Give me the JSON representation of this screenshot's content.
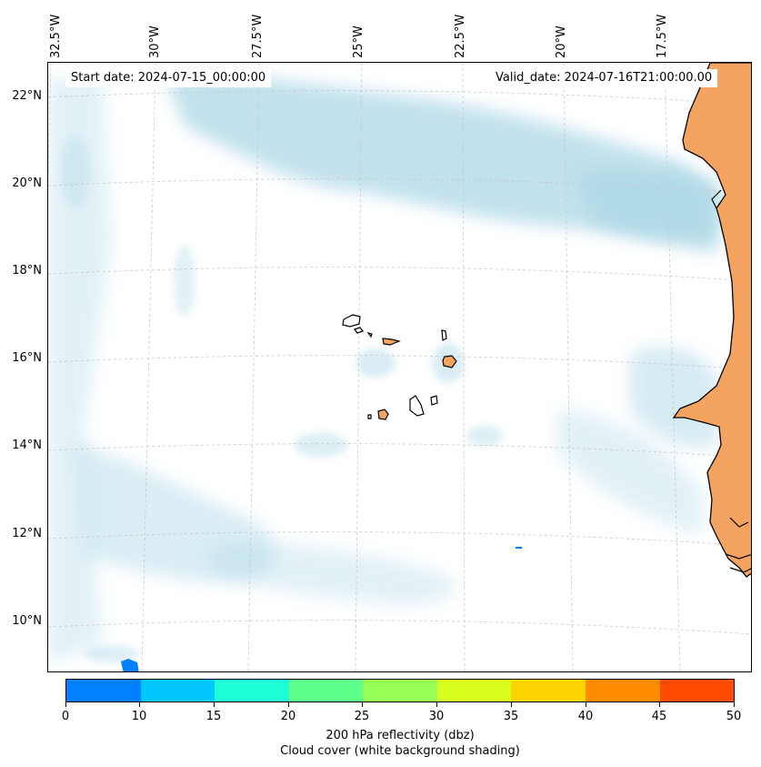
{
  "header": {
    "start_date": "Start date: 2024-07-15_00:00:00",
    "valid_date": "Valid_date: 2024-07-16T21:00:00.00"
  },
  "map": {
    "longitude_labels": [
      "32.5°W",
      "30°W",
      "27.5°W",
      "25°W",
      "22.5°W",
      "20°W",
      "17.5°W"
    ],
    "latitude_labels": [
      "22°N",
      "20°N",
      "18°N",
      "16°N",
      "14°N",
      "12°N",
      "10°N"
    ],
    "land_color": "#f4a460",
    "cloud_color": "#add8e6",
    "reflectivity_patch_color": "#0080ff"
  },
  "colorbar": {
    "tick_labels": [
      "0",
      "10",
      "15",
      "20",
      "25",
      "30",
      "35",
      "40",
      "45",
      "50"
    ],
    "colors": [
      "#0080ff",
      "#00c8ff",
      "#1effd8",
      "#5fff8c",
      "#96ff55",
      "#d8ff1e",
      "#ffd500",
      "#ff8c00",
      "#ff4b00"
    ],
    "label_line1": "200 hPa reflectivity (dbz)",
    "label_line2": "Cloud cover (white background shading)"
  }
}
